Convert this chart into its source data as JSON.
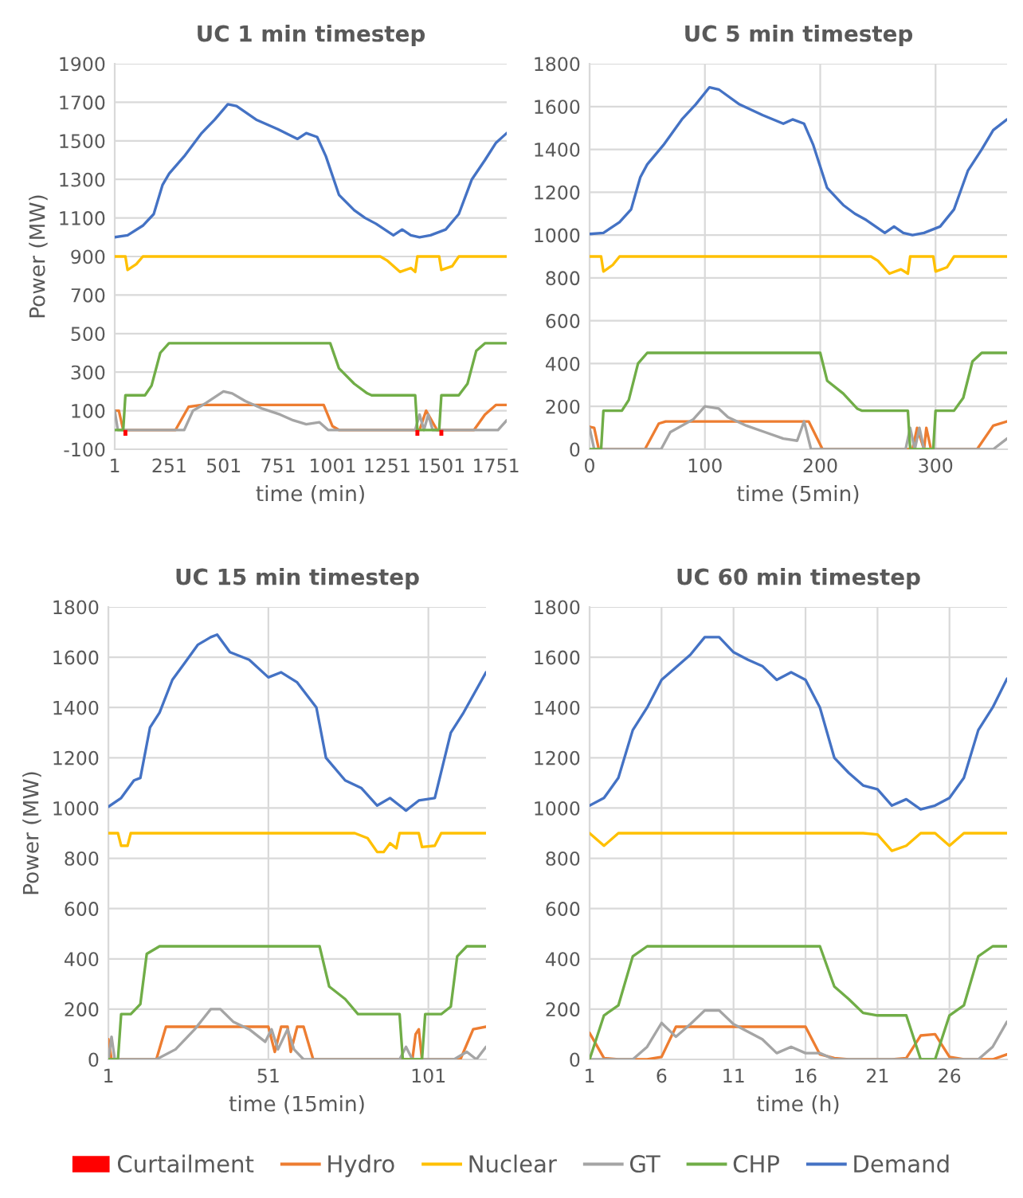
{
  "chart_data": [
    {
      "type": "line",
      "title": "UC 1 min timestep",
      "xlabel": "time (min)",
      "ylabel": "Power (MW)",
      "xlim": [
        1,
        1800
      ],
      "xticks": [
        1,
        251,
        501,
        751,
        1001,
        1251,
        1501,
        1751
      ],
      "ylim": [
        -100,
        1900
      ],
      "yticks": [
        -100,
        100,
        300,
        500,
        700,
        900,
        1100,
        1300,
        1500,
        1700,
        1900
      ],
      "grid": "y",
      "legend": "bottom",
      "series": [
        {
          "name": "Curtailment",
          "type": "bar",
          "color": "#ff0000",
          "x": [
            50,
            1390,
            1500
          ],
          "values": [
            -30,
            -30,
            -30
          ]
        },
        {
          "name": "Hydro",
          "color": "#ed7d31",
          "x": [
            1,
            20,
            40,
            280,
            340,
            400,
            960,
            1000,
            1030,
            1400,
            1430,
            1480,
            1650,
            1700,
            1751,
            1800
          ],
          "values": [
            100,
            100,
            0,
            0,
            120,
            130,
            130,
            20,
            0,
            0,
            100,
            0,
            0,
            80,
            130,
            130
          ]
        },
        {
          "name": "Nuclear",
          "color": "#ffc000",
          "x": [
            1,
            50,
            60,
            100,
            130,
            1220,
            1250,
            1310,
            1360,
            1380,
            1390,
            1490,
            1500,
            1550,
            1580,
            1800
          ],
          "values": [
            900,
            900,
            830,
            860,
            900,
            900,
            880,
            820,
            840,
            820,
            900,
            900,
            830,
            850,
            900,
            900
          ]
        },
        {
          "name": "GT",
          "color": "#a5a5a5",
          "x": [
            1,
            15,
            320,
            360,
            420,
            500,
            540,
            600,
            680,
            760,
            820,
            880,
            940,
            980,
            1380,
            1400,
            1420,
            1440,
            1460,
            1760,
            1800
          ],
          "values": [
            100,
            0,
            0,
            100,
            140,
            200,
            190,
            150,
            110,
            80,
            50,
            30,
            40,
            0,
            0,
            80,
            0,
            80,
            0,
            0,
            50
          ]
        },
        {
          "name": "CHP",
          "color": "#70ad47",
          "x": [
            1,
            40,
            50,
            140,
            170,
            210,
            250,
            990,
            1030,
            1100,
            1160,
            1180,
            1380,
            1390,
            1490,
            1500,
            1580,
            1620,
            1660,
            1700,
            1800
          ],
          "values": [
            0,
            0,
            180,
            180,
            230,
            400,
            450,
            450,
            320,
            240,
            190,
            180,
            180,
            0,
            0,
            180,
            180,
            240,
            410,
            450,
            450
          ]
        },
        {
          "name": "Demand",
          "color": "#4472c4",
          "x": [
            1,
            60,
            130,
            180,
            220,
            251,
            320,
            400,
            460,
            520,
            560,
            650,
            750,
            840,
            880,
            930,
            970,
            1030,
            1100,
            1150,
            1200,
            1280,
            1320,
            1360,
            1400,
            1450,
            1520,
            1580,
            1640,
            1700,
            1751,
            1800
          ],
          "values": [
            1000,
            1010,
            1060,
            1120,
            1270,
            1330,
            1420,
            1540,
            1610,
            1690,
            1680,
            1610,
            1560,
            1510,
            1540,
            1520,
            1420,
            1220,
            1140,
            1100,
            1070,
            1010,
            1040,
            1010,
            1000,
            1010,
            1040,
            1120,
            1300,
            1400,
            1490,
            1540
          ]
        }
      ]
    },
    {
      "type": "line",
      "title": "UC 5 min timestep",
      "xlabel": "time (5min)",
      "xlim": [
        0,
        362
      ],
      "xticks": [
        0,
        100,
        200,
        300
      ],
      "ylim": [
        0,
        1800
      ],
      "yticks": [
        0,
        200,
        400,
        600,
        800,
        1000,
        1200,
        1400,
        1600,
        1800
      ],
      "grid": true,
      "series": [
        {
          "color": "#ed7d31",
          "x": [
            0,
            4,
            8,
            48,
            60,
            66,
            190,
            202,
            280,
            284,
            290,
            292,
            296,
            336,
            350,
            362
          ],
          "values": [
            105,
            100,
            0,
            0,
            120,
            130,
            130,
            0,
            0,
            100,
            0,
            100,
            0,
            0,
            110,
            130
          ]
        },
        {
          "color": "#ffc000",
          "x": [
            0,
            10,
            12,
            20,
            26,
            244,
            250,
            260,
            270,
            276,
            278,
            298,
            300,
            310,
            316,
            362
          ],
          "values": [
            900,
            900,
            830,
            860,
            900,
            900,
            880,
            820,
            840,
            820,
            900,
            900,
            830,
            850,
            900,
            900
          ]
        },
        {
          "color": "#a5a5a5",
          "x": [
            0,
            4,
            62,
            70,
            90,
            100,
            112,
            120,
            136,
            152,
            168,
            180,
            186,
            192,
            274,
            278,
            282,
            286,
            290,
            350,
            362
          ],
          "values": [
            100,
            0,
            0,
            80,
            140,
            200,
            190,
            150,
            110,
            80,
            50,
            40,
            130,
            0,
            0,
            100,
            0,
            100,
            0,
            0,
            50
          ]
        },
        {
          "color": "#70ad47",
          "x": [
            0,
            10,
            12,
            28,
            34,
            42,
            50,
            200,
            206,
            220,
            232,
            236,
            276,
            278,
            298,
            300,
            316,
            324,
            332,
            340,
            362
          ],
          "values": [
            0,
            0,
            180,
            180,
            230,
            400,
            450,
            450,
            320,
            260,
            190,
            180,
            180,
            0,
            0,
            180,
            180,
            240,
            410,
            450,
            450
          ]
        },
        {
          "color": "#4472c4",
          "x": [
            0,
            12,
            26,
            36,
            44,
            50,
            64,
            80,
            92,
            104,
            112,
            130,
            150,
            168,
            176,
            186,
            194,
            206,
            220,
            230,
            240,
            256,
            264,
            272,
            280,
            290,
            304,
            316,
            328,
            340,
            350,
            362
          ],
          "values": [
            1005,
            1010,
            1060,
            1120,
            1270,
            1330,
            1420,
            1540,
            1610,
            1690,
            1680,
            1610,
            1560,
            1520,
            1540,
            1520,
            1420,
            1220,
            1140,
            1100,
            1070,
            1010,
            1040,
            1010,
            1000,
            1010,
            1040,
            1120,
            1300,
            1400,
            1490,
            1540
          ]
        }
      ]
    },
    {
      "type": "line",
      "title": "UC 15 min timestep",
      "xlabel": "time (15min)",
      "ylabel": "Power (MW)",
      "xlim": [
        1,
        119
      ],
      "xticks": [
        1,
        51,
        101
      ],
      "ylim": [
        0,
        1800
      ],
      "yticks": [
        0,
        200,
        400,
        600,
        800,
        1000,
        1200,
        1400,
        1600,
        1800
      ],
      "grid": true,
      "series": [
        {
          "color": "#ed7d31",
          "x": [
            1,
            2,
            16,
            19,
            51,
            53,
            55,
            57,
            58,
            60,
            62,
            65,
            96,
            97,
            98,
            99,
            111,
            115,
            119
          ],
          "values": [
            80,
            0,
            0,
            130,
            130,
            30,
            130,
            130,
            30,
            130,
            130,
            0,
            0,
            100,
            120,
            0,
            0,
            120,
            130
          ]
        },
        {
          "color": "#ffc000",
          "x": [
            1,
            4,
            5,
            7,
            8,
            78,
            82,
            85,
            87,
            89,
            91,
            92,
            98,
            99,
            103,
            105,
            119
          ],
          "values": [
            900,
            900,
            850,
            850,
            900,
            900,
            880,
            825,
            825,
            860,
            840,
            900,
            900,
            845,
            850,
            900,
            900
          ]
        },
        {
          "color": "#a5a5a5",
          "x": [
            1,
            2,
            3,
            16,
            22,
            28,
            33,
            36,
            40,
            45,
            50,
            52,
            54,
            57,
            59,
            62,
            92,
            94,
            96,
            109,
            113,
            116,
            119
          ],
          "values": [
            0,
            90,
            0,
            0,
            40,
            120,
            200,
            200,
            150,
            120,
            70,
            120,
            40,
            120,
            40,
            0,
            0,
            50,
            0,
            0,
            30,
            0,
            50
          ]
        },
        {
          "color": "#70ad47",
          "x": [
            1,
            4,
            5,
            8,
            11,
            13,
            17,
            67,
            70,
            75,
            79,
            92,
            93,
            99,
            100,
            105,
            108,
            110,
            113,
            119
          ],
          "values": [
            0,
            0,
            180,
            180,
            220,
            420,
            450,
            450,
            290,
            240,
            180,
            180,
            0,
            0,
            180,
            180,
            210,
            410,
            450,
            450
          ]
        },
        {
          "color": "#4472c4",
          "x": [
            1,
            5,
            9,
            11,
            14,
            17,
            21,
            25,
            29,
            33,
            35,
            39,
            45,
            51,
            55,
            60,
            66,
            69,
            75,
            80,
            85,
            89,
            92,
            94,
            98,
            103,
            108,
            112,
            119
          ],
          "values": [
            1005,
            1040,
            1110,
            1120,
            1320,
            1380,
            1510,
            1580,
            1650,
            1680,
            1690,
            1620,
            1590,
            1520,
            1540,
            1500,
            1400,
            1200,
            1110,
            1080,
            1010,
            1040,
            1010,
            990,
            1030,
            1040,
            1300,
            1380,
            1540
          ]
        }
      ]
    },
    {
      "type": "line",
      "title": "UC 60 min timestep",
      "xlabel": "time (h)",
      "xlim": [
        1,
        30
      ],
      "xticks": [
        1,
        6,
        11,
        16,
        21,
        26
      ],
      "ylim": [
        0,
        1800
      ],
      "yticks": [
        0,
        200,
        400,
        600,
        800,
        1000,
        1200,
        1400,
        1600,
        1800
      ],
      "grid": true,
      "x": [
        1,
        2,
        3,
        4,
        5,
        6,
        7,
        8,
        9,
        10,
        11,
        12,
        13,
        14,
        15,
        16,
        17,
        18,
        19,
        20,
        21,
        22,
        23,
        24,
        25,
        26,
        27,
        28,
        29,
        30
      ],
      "series": [
        {
          "color": "#ed7d31",
          "values": [
            105,
            5,
            0,
            0,
            0,
            10,
            130,
            130,
            130,
            130,
            130,
            130,
            130,
            130,
            130,
            130,
            20,
            5,
            0,
            0,
            0,
            0,
            5,
            95,
            100,
            10,
            0,
            0,
            0,
            20
          ]
        },
        {
          "color": "#ffc000",
          "values": [
            900,
            850,
            900,
            900,
            900,
            900,
            900,
            900,
            900,
            900,
            900,
            900,
            900,
            900,
            900,
            900,
            900,
            900,
            900,
            900,
            895,
            830,
            850,
            900,
            900,
            850,
            900,
            900,
            900,
            900
          ]
        },
        {
          "color": "#a5a5a5",
          "values": [
            0,
            0,
            0,
            0,
            50,
            145,
            90,
            140,
            195,
            195,
            140,
            110,
            80,
            25,
            50,
            25,
            25,
            0,
            0,
            0,
            0,
            0,
            0,
            0,
            0,
            0,
            0,
            0,
            50,
            150
          ]
        },
        {
          "color": "#70ad47",
          "values": [
            0,
            175,
            215,
            410,
            450,
            450,
            450,
            450,
            450,
            450,
            450,
            450,
            450,
            450,
            450,
            450,
            450,
            290,
            240,
            185,
            175,
            175,
            175,
            0,
            0,
            175,
            215,
            410,
            450,
            450
          ]
        },
        {
          "color": "#4472c4",
          "values": [
            1010,
            1040,
            1120,
            1310,
            1400,
            1510,
            1560,
            1610,
            1680,
            1680,
            1620,
            1590,
            1565,
            1510,
            1540,
            1510,
            1400,
            1200,
            1140,
            1090,
            1075,
            1010,
            1035,
            995,
            1010,
            1040,
            1120,
            1310,
            1400,
            1515
          ]
        }
      ]
    }
  ]
}
